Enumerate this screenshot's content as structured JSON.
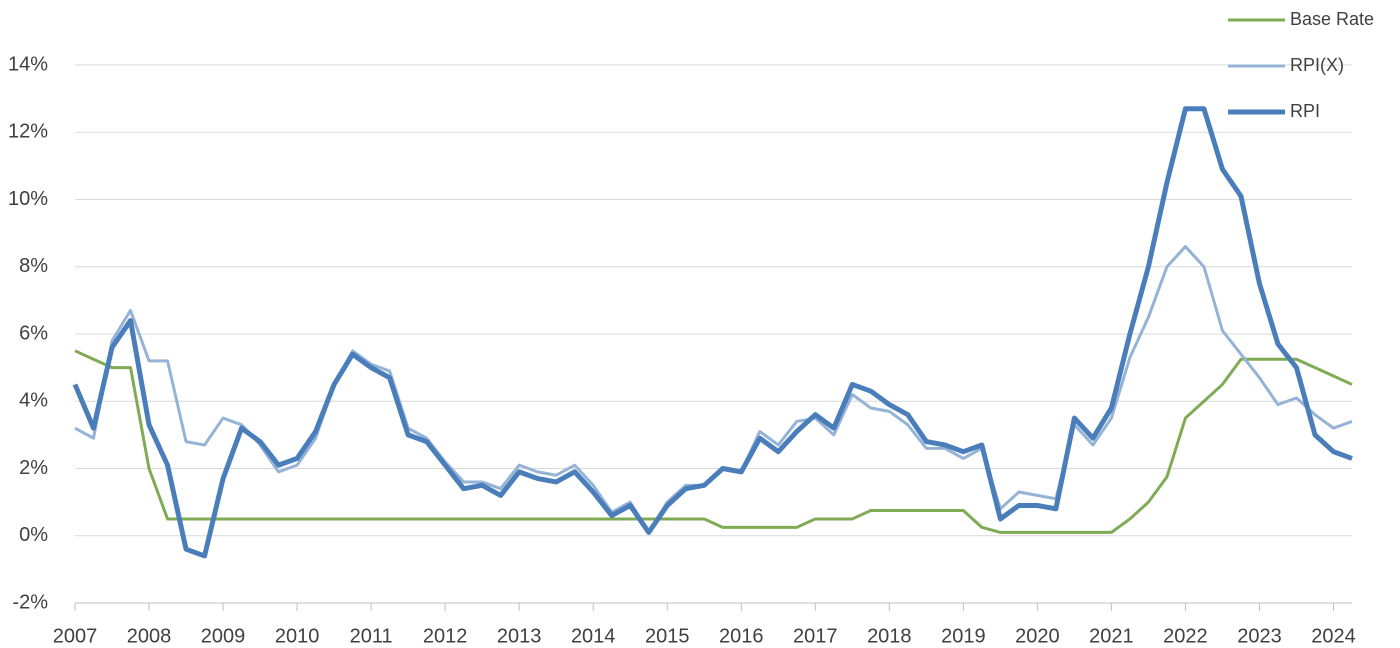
{
  "chart_data": {
    "type": "line",
    "x": [
      2007,
      2007.25,
      2007.5,
      2007.75,
      2008,
      2008.25,
      2008.5,
      2008.75,
      2009,
      2009.25,
      2009.5,
      2009.75,
      2010,
      2010.25,
      2010.5,
      2010.75,
      2011,
      2011.25,
      2011.5,
      2011.75,
      2012,
      2012.25,
      2012.5,
      2012.75,
      2013,
      2013.25,
      2013.5,
      2013.75,
      2014,
      2014.25,
      2014.5,
      2014.75,
      2015,
      2015.25,
      2015.5,
      2015.75,
      2016,
      2016.25,
      2016.5,
      2016.75,
      2017,
      2017.25,
      2017.5,
      2017.75,
      2018,
      2018.25,
      2018.5,
      2018.75,
      2019,
      2019.25,
      2019.5,
      2019.75,
      2020,
      2020.25,
      2020.5,
      2020.75,
      2021,
      2021.25,
      2021.5,
      2021.75,
      2022,
      2022.25,
      2022.5,
      2022.75,
      2023,
      2023.25,
      2023.5,
      2023.75,
      2024,
      2024.25
    ],
    "series": [
      {
        "name": "Base Rate",
        "color": "#7fab55",
        "values": [
          5.5,
          5.25,
          5.0,
          5.0,
          2.0,
          0.5,
          0.5,
          0.5,
          0.5,
          0.5,
          0.5,
          0.5,
          0.5,
          0.5,
          0.5,
          0.5,
          0.5,
          0.5,
          0.5,
          0.5,
          0.5,
          0.5,
          0.5,
          0.5,
          0.5,
          0.5,
          0.5,
          0.5,
          0.5,
          0.5,
          0.5,
          0.5,
          0.5,
          0.5,
          0.5,
          0.25,
          0.25,
          0.25,
          0.25,
          0.25,
          0.5,
          0.5,
          0.5,
          0.75,
          0.75,
          0.75,
          0.75,
          0.75,
          0.75,
          0.25,
          0.1,
          0.1,
          0.1,
          0.1,
          0.1,
          0.1,
          0.1,
          0.5,
          1.0,
          1.75,
          3.5,
          4.0,
          4.5,
          5.25,
          5.25,
          5.25,
          5.25,
          5.0,
          4.75,
          4.5
        ]
      },
      {
        "name": "RPI(X)",
        "color": "#95b3d7",
        "values": [
          3.2,
          2.9,
          5.8,
          6.7,
          5.2,
          5.2,
          2.8,
          2.7,
          3.5,
          3.3,
          2.7,
          1.9,
          2.1,
          2.9,
          4.5,
          5.5,
          5.1,
          4.9,
          3.2,
          2.9,
          2.2,
          1.6,
          1.6,
          1.4,
          2.1,
          1.9,
          1.8,
          2.1,
          1.5,
          0.7,
          1.0,
          0.1,
          1.0,
          1.5,
          1.5,
          2.0,
          1.9,
          3.1,
          2.7,
          3.4,
          3.5,
          3.0,
          4.2,
          3.8,
          3.7,
          3.3,
          2.6,
          2.6,
          2.3,
          2.6,
          0.8,
          1.3,
          1.2,
          1.1,
          3.3,
          2.7,
          3.5,
          5.3,
          6.5,
          8.0,
          8.6,
          8.0,
          6.1,
          5.4,
          4.7,
          3.9,
          4.1,
          3.6,
          3.2,
          3.4
        ]
      },
      {
        "name": "RPI",
        "color": "#4a7ebb",
        "values": [
          4.5,
          3.2,
          5.6,
          6.4,
          3.3,
          2.1,
          -0.4,
          -0.6,
          1.7,
          3.2,
          2.8,
          2.1,
          2.3,
          3.1,
          4.5,
          5.4,
          5.0,
          4.7,
          3.0,
          2.8,
          2.1,
          1.4,
          1.5,
          1.2,
          1.9,
          1.7,
          1.6,
          1.9,
          1.3,
          0.6,
          0.9,
          0.1,
          0.9,
          1.4,
          1.5,
          2.0,
          1.9,
          2.9,
          2.5,
          3.1,
          3.6,
          3.2,
          4.5,
          4.3,
          3.9,
          3.6,
          2.8,
          2.7,
          2.5,
          2.7,
          0.5,
          0.9,
          0.9,
          0.8,
          3.5,
          2.9,
          3.8,
          6.0,
          8.0,
          10.5,
          12.7,
          12.7,
          10.9,
          10.1,
          7.5,
          5.7,
          5.0,
          3.0,
          2.5,
          2.3
        ]
      }
    ],
    "xlim": [
      2007,
      2024.25
    ],
    "xticks": [
      2007,
      2008,
      2009,
      2010,
      2011,
      2012,
      2013,
      2014,
      2015,
      2016,
      2017,
      2018,
      2019,
      2020,
      2021,
      2022,
      2023,
      2024
    ],
    "ylim": [
      -2,
      14
    ],
    "yticks": [
      {
        "value": -2,
        "label": "-2%"
      },
      {
        "value": 0,
        "label": "0%"
      },
      {
        "value": 2,
        "label": "2%"
      },
      {
        "value": 4,
        "label": "4%"
      },
      {
        "value": 6,
        "label": "6%"
      },
      {
        "value": 8,
        "label": "8%"
      },
      {
        "value": 10,
        "label": "10%"
      },
      {
        "value": 12,
        "label": "12%"
      },
      {
        "value": 14,
        "label": "14%"
      }
    ],
    "grid": true,
    "legend": "top-right"
  }
}
